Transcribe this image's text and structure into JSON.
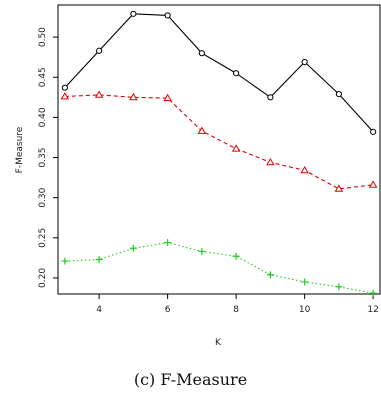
{
  "caption": "(c) F-Measure",
  "chart_data": {
    "type": "line",
    "xlabel": "K",
    "ylabel": "F-Measure",
    "xlim": [
      2.8,
      12.2
    ],
    "ylim": [
      0.18,
      0.54
    ],
    "xticks": [
      4,
      6,
      8,
      10,
      12
    ],
    "yticks": [
      0.2,
      0.25,
      0.3,
      0.35,
      0.4,
      0.45,
      0.5
    ],
    "x": [
      3,
      4,
      5,
      6,
      7,
      8,
      9,
      10,
      11,
      12
    ],
    "series": [
      {
        "color": "#000000",
        "line": "solid",
        "marker": "circle",
        "values": [
          0.437,
          0.483,
          0.529,
          0.527,
          0.48,
          0.455,
          0.425,
          0.469,
          0.429,
          0.382
        ]
      },
      {
        "color": "#e00000",
        "line": "dashed",
        "marker": "triangle",
        "values": [
          0.426,
          0.428,
          0.425,
          0.424,
          0.383,
          0.361,
          0.344,
          0.334,
          0.311,
          0.316
        ]
      },
      {
        "color": "#22cc22",
        "line": "dotted",
        "marker": "plus",
        "values": [
          0.221,
          0.223,
          0.237,
          0.244,
          0.233,
          0.227,
          0.204,
          0.195,
          0.189,
          0.181
        ]
      }
    ]
  }
}
